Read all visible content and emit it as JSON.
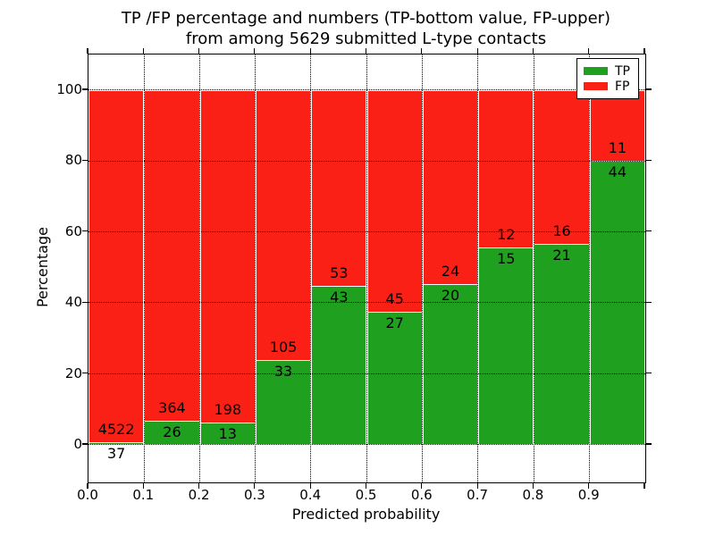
{
  "title": {
    "line1": "TP /FP percentage and numbers (TP-bottom value, FP-upper)",
    "line2": "from among 5629 submitted L-type contacts"
  },
  "chart_data": {
    "type": "bar",
    "stacked": true,
    "title": "TP /FP percentage and numbers (TP-bottom value, FP-upper) from among 5629 submitted L-type contacts",
    "xlabel": "Predicted probability",
    "ylabel": "Percentage",
    "bin_width": 0.1,
    "bin_starts": [
      0.0,
      0.1,
      0.2,
      0.3,
      0.4,
      0.5,
      0.6,
      0.7,
      0.8,
      0.9
    ],
    "xtick_labels": [
      "0.0",
      "0.1",
      "0.2",
      "0.3",
      "0.4",
      "0.5",
      "0.6",
      "0.7",
      "0.8",
      "0.9"
    ],
    "ytick_values": [
      0,
      20,
      40,
      60,
      80,
      100
    ],
    "xlim": [
      0.0,
      1.0
    ],
    "ylim": [
      -10.6,
      110.1
    ],
    "grid": "dotted black, drawn on top of bars",
    "legend": {
      "position": "upper-right",
      "entries": [
        {
          "label": "TP",
          "color": "#1fa01f"
        },
        {
          "label": "FP",
          "color": "#fb2016"
        }
      ]
    },
    "series": [
      {
        "name": "TP",
        "color": "#1fa01f",
        "counts": [
          37,
          26,
          13,
          33,
          43,
          27,
          20,
          15,
          21,
          44
        ],
        "percent": [
          0.81,
          6.67,
          6.16,
          23.91,
          44.79,
          37.5,
          45.45,
          55.56,
          56.76,
          80.0
        ]
      },
      {
        "name": "FP",
        "color": "#fb2016",
        "counts": [
          4522,
          364,
          198,
          105,
          53,
          45,
          24,
          12,
          16,
          11
        ],
        "percent": [
          99.19,
          93.33,
          93.84,
          76.09,
          55.21,
          62.5,
          54.55,
          44.44,
          43.24,
          20.0
        ]
      }
    ],
    "total_contacts": 5629
  },
  "colors": {
    "tp": "#1fa01f",
    "fp": "#fb2016",
    "grid": "#000000",
    "frame": "#000000",
    "background": "#ffffff",
    "bar_edge": "#ffffff"
  }
}
